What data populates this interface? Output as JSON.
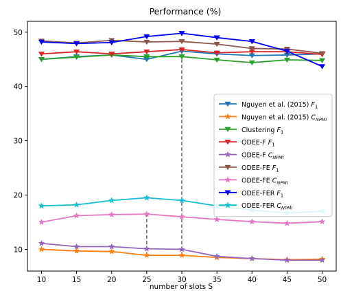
{
  "chart_data": {
    "type": "line",
    "title": "Performance (%)",
    "xlabel": "number of slots S",
    "ylabel": "",
    "x": [
      10,
      15,
      20,
      25,
      30,
      35,
      40,
      45,
      50
    ],
    "xlim": [
      8,
      52
    ],
    "ylim": [
      6,
      52
    ],
    "xticks": [
      10,
      15,
      20,
      25,
      30,
      35,
      40,
      45,
      50
    ],
    "yticks": [
      10,
      20,
      30,
      40,
      50
    ],
    "grid": false,
    "legend_position": "center-right",
    "reference_lines": [
      {
        "x": 30,
        "y_from": 8.9,
        "y_to": 46.8
      },
      {
        "x": 25,
        "y_from": 8.9,
        "y_to": 16.5
      }
    ],
    "series": [
      {
        "name": "Nguyen et al. (2015) F",
        "sub": "1",
        "color": "#1f77b4",
        "marker": "triangle-down",
        "values": [
          45.0,
          45.5,
          45.8,
          45.0,
          46.5,
          46.0,
          45.7,
          45.8,
          46.0
        ]
      },
      {
        "name": "Nguyen et al. (2015) C",
        "sub": "NPMI",
        "color": "#ff7f0e",
        "marker": "star",
        "values": [
          10.0,
          9.7,
          9.6,
          8.9,
          8.9,
          8.5,
          8.3,
          8.1,
          8.2
        ]
      },
      {
        "name": "Clustering F",
        "sub": "1",
        "color": "#2ca02c",
        "marker": "triangle-down",
        "values": [
          45.0,
          45.4,
          45.8,
          45.5,
          45.5,
          44.9,
          44.4,
          44.9,
          44.8
        ]
      },
      {
        "name": "ODEE-F F",
        "sub": "1",
        "color": "#d62728",
        "marker": "triangle-down",
        "values": [
          46.0,
          46.4,
          46.0,
          46.4,
          46.8,
          46.2,
          46.4,
          46.4,
          45.9
        ]
      },
      {
        "name": "ODEE-F C",
        "sub": "NPMI",
        "color": "#9467bd",
        "marker": "star",
        "values": [
          11.1,
          10.5,
          10.5,
          10.1,
          10.0,
          8.7,
          8.3,
          8.0,
          8.0
        ]
      },
      {
        "name": "ODEE-FE F",
        "sub": "1",
        "color": "#8c564b",
        "marker": "triangle-down",
        "values": [
          48.4,
          48.0,
          48.5,
          48.2,
          48.3,
          47.8,
          47.0,
          46.9,
          46.1
        ]
      },
      {
        "name": "ODEE-FE C",
        "sub": "NPMI",
        "color": "#e377c2",
        "marker": "star",
        "values": [
          15.0,
          16.2,
          16.4,
          16.5,
          16.0,
          15.5,
          15.1,
          14.8,
          15.1
        ]
      },
      {
        "name": "ODEE-FER F",
        "sub": "1",
        "color": "#0000ee",
        "marker": "triangle-down",
        "values": [
          48.2,
          47.9,
          48.1,
          49.2,
          49.8,
          49.0,
          48.3,
          46.5,
          43.7
        ]
      },
      {
        "name": "ODEE-FER C",
        "sub": "NPMI",
        "color": "#17becf",
        "marker": "star",
        "values": [
          18.0,
          18.2,
          19.0,
          19.5,
          19.0,
          18.0,
          17.2,
          16.7,
          17.0
        ]
      }
    ]
  }
}
